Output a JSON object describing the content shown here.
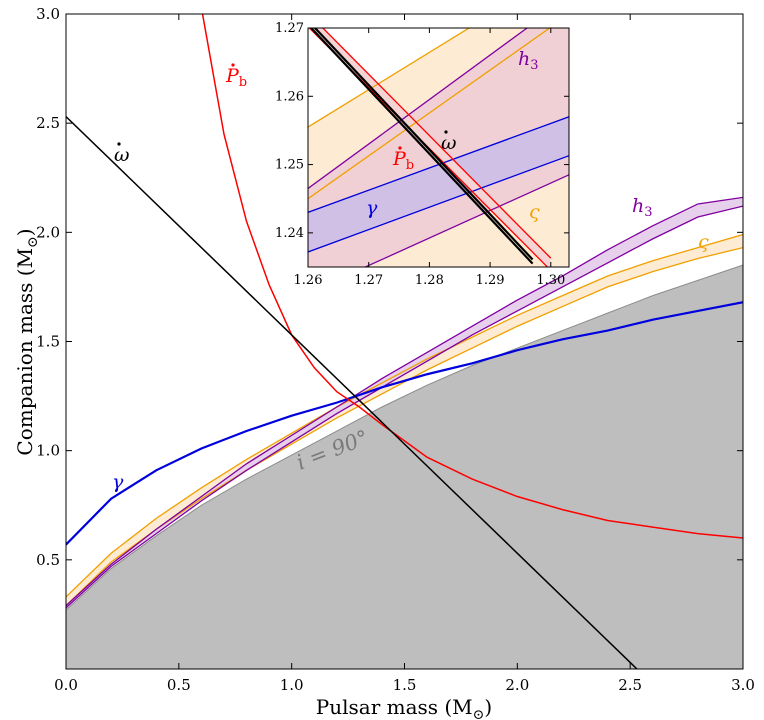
{
  "chart_data": [
    {
      "type": "line",
      "xlabel": "Pulsar mass (M",
      "ylabel": "Companion mass (M",
      "units_symbol": "⊙",
      "xlim": [
        0.0,
        3.0
      ],
      "ylim": [
        0.0,
        3.0
      ],
      "xticks": [
        "0.0",
        "0.5",
        "1.0",
        "1.5",
        "2.0",
        "2.5",
        "3.0"
      ],
      "yticks": [
        "0.5",
        "1.0",
        "1.5",
        "2.0",
        "2.5",
        "3.0"
      ],
      "grid": false,
      "region_label": "i = 90°",
      "region": {
        "name": "excluded region",
        "color": "#bebebe",
        "x": [
          0.0,
          0.2,
          0.4,
          0.6,
          0.8,
          1.0,
          1.2,
          1.4,
          1.6,
          1.8,
          2.0,
          2.2,
          2.4,
          2.6,
          2.8,
          3.0
        ],
        "y": [
          0.27,
          0.46,
          0.61,
          0.75,
          0.87,
          0.98,
          1.09,
          1.2,
          1.3,
          1.39,
          1.47,
          1.55,
          1.63,
          1.71,
          1.78,
          1.85
        ]
      },
      "series": [
        {
          "name": "ω̇",
          "label": "ω",
          "color": "#000000",
          "x": [
            0.0,
            0.5,
            1.0,
            1.5,
            2.0,
            2.5,
            2.53
          ],
          "y": [
            2.53,
            2.03,
            1.53,
            1.03,
            0.53,
            0.03,
            0.0
          ]
        },
        {
          "name": "Ṗb",
          "label": "P",
          "label_sub": "b",
          "color": "#ff0000",
          "x": [
            0.605,
            0.7,
            0.8,
            0.9,
            1.0,
            1.1,
            1.2,
            1.3,
            1.4,
            1.6,
            1.8,
            2.0,
            2.2,
            2.4,
            2.6,
            2.8,
            3.0
          ],
          "y": [
            3.0,
            2.45,
            2.05,
            1.76,
            1.53,
            1.38,
            1.27,
            1.2,
            1.12,
            0.97,
            0.87,
            0.79,
            0.73,
            0.68,
            0.65,
            0.62,
            0.6
          ]
        },
        {
          "name": "γ",
          "label": "γ",
          "color": "#0000dd",
          "x": [
            0.0,
            0.2,
            0.4,
            0.6,
            0.8,
            1.0,
            1.2,
            1.4,
            1.6,
            1.8,
            2.0,
            2.2,
            2.4,
            2.6,
            2.8,
            3.0
          ],
          "y": [
            0.57,
            0.78,
            0.91,
            1.01,
            1.09,
            1.16,
            1.22,
            1.29,
            1.35,
            1.4,
            1.46,
            1.51,
            1.55,
            1.6,
            1.64,
            1.68
          ]
        },
        {
          "name": "h3",
          "label": "h",
          "label_sub": "3",
          "color": "#8000a0",
          "fill": "#e6d0ec",
          "x": [
            0.0,
            0.2,
            0.4,
            0.6,
            0.8,
            1.0,
            1.2,
            1.4,
            1.6,
            1.8,
            2.0,
            2.2,
            2.4,
            2.6,
            2.8,
            3.0
          ],
          "y_low": [
            0.28,
            0.47,
            0.62,
            0.77,
            0.91,
            1.04,
            1.17,
            1.29,
            1.41,
            1.53,
            1.64,
            1.75,
            1.86,
            1.97,
            2.07,
            2.12
          ],
          "y_high": [
            0.29,
            0.48,
            0.64,
            0.79,
            0.94,
            1.07,
            1.2,
            1.33,
            1.45,
            1.57,
            1.69,
            1.8,
            1.92,
            2.03,
            2.13,
            2.16
          ]
        },
        {
          "name": "ς",
          "label": "ς",
          "color": "#f0a000",
          "fill": "#fdebd4",
          "x": [
            0.0,
            0.2,
            0.4,
            0.6,
            0.8,
            1.0,
            1.2,
            1.4,
            1.6,
            1.8,
            2.0,
            2.2,
            2.4,
            2.6,
            2.8,
            3.0
          ],
          "y_low": [
            0.29,
            0.49,
            0.64,
            0.78,
            0.91,
            1.03,
            1.15,
            1.26,
            1.37,
            1.47,
            1.57,
            1.66,
            1.75,
            1.82,
            1.88,
            1.93
          ],
          "y_high": [
            0.33,
            0.53,
            0.69,
            0.83,
            0.96,
            1.08,
            1.2,
            1.31,
            1.42,
            1.52,
            1.62,
            1.71,
            1.8,
            1.87,
            1.93,
            1.99
          ]
        }
      ]
    },
    {
      "type": "line",
      "panel": "inset",
      "xlim": [
        1.26,
        1.303
      ],
      "ylim": [
        1.235,
        1.27
      ],
      "xticks": [
        "1.26",
        "1.27",
        "1.28",
        "1.29",
        "1.30"
      ],
      "yticks": [
        "1.24",
        "1.25",
        "1.26",
        "1.27"
      ],
      "series": [
        {
          "name": "ω̇",
          "label": "ω",
          "color": "#000000",
          "band": true,
          "x": [
            1.26,
            1.297
          ],
          "y_low": [
            1.2705,
            1.2355
          ],
          "y_high": [
            1.2711,
            1.2361
          ]
        },
        {
          "name": "Ṗb",
          "label": "P",
          "label_sub": "b",
          "color": "#ff0000",
          "fill": "#f4d4d4",
          "x": [
            1.26,
            1.3
          ],
          "y_low": [
            1.2702,
            1.2345
          ],
          "y_high": [
            1.2722,
            1.2363
          ]
        },
        {
          "name": "γ",
          "label": "γ",
          "color": "#0000dd",
          "fill": "#cdbfe6",
          "x": [
            1.26,
            1.303
          ],
          "y_low": [
            1.2372,
            1.2513
          ],
          "y_high": [
            1.243,
            1.257
          ]
        },
        {
          "name": "h3",
          "label": "h",
          "label_sub": "3",
          "color": "#8000a0",
          "x": [
            1.26,
            1.303
          ],
          "y_low": [
            1.2312,
            1.2485
          ],
          "y_high": [
            1.2465,
            1.2745
          ]
        },
        {
          "name": "ς",
          "label": "ς",
          "color": "#f0a000",
          "x": [
            1.26,
            1.303
          ],
          "y_low": [
            1.245,
            1.272
          ],
          "y_high": [
            1.2555,
            1.279
          ]
        }
      ]
    }
  ]
}
